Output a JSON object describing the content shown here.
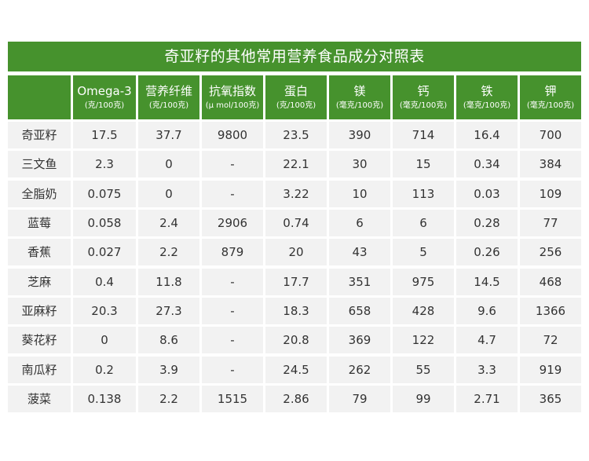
{
  "title": "奇亚籽的其他常用营养食品成分对照表",
  "header_color": "#46922d",
  "cell_color": "#f2f2f2",
  "columns": [
    {
      "name": "",
      "unit": ""
    },
    {
      "name": "Omega-3",
      "unit": "(克/100克)"
    },
    {
      "name": "营养纤维",
      "unit": "(克/100克)"
    },
    {
      "name": "抗氧指数",
      "unit": "(μ mol/100克)"
    },
    {
      "name": "蛋白",
      "unit": "(克/100克)"
    },
    {
      "name": "镁",
      "unit": "(毫克/100克)"
    },
    {
      "name": "钙",
      "unit": "(毫克/100克)"
    },
    {
      "name": "铁",
      "unit": "(毫克/100克)"
    },
    {
      "name": "钾",
      "unit": "(毫克/100克)"
    }
  ],
  "rows": [
    [
      "奇亚籽",
      "17.5",
      "37.7",
      "9800",
      "23.5",
      "390",
      "714",
      "16.4",
      "700"
    ],
    [
      "三文鱼",
      "2.3",
      "0",
      "-",
      "22.1",
      "30",
      "15",
      "0.34",
      "384"
    ],
    [
      "全脂奶",
      "0.075",
      "0",
      "-",
      "3.22",
      "10",
      "113",
      "0.03",
      "109"
    ],
    [
      "蓝莓",
      "0.058",
      "2.4",
      "2906",
      "0.74",
      "6",
      "6",
      "0.28",
      "77"
    ],
    [
      "香蕉",
      "0.027",
      "2.2",
      "879",
      "20",
      "43",
      "5",
      "0.26",
      "256"
    ],
    [
      "芝麻",
      "0.4",
      "11.8",
      "-",
      "17.7",
      "351",
      "975",
      "14.5",
      "468"
    ],
    [
      "亚麻籽",
      "20.3",
      "27.3",
      "-",
      "18.3",
      "658",
      "428",
      "9.6",
      "1366"
    ],
    [
      "葵花籽",
      "0",
      "8.6",
      "-",
      "20.8",
      "369",
      "122",
      "4.7",
      "72"
    ],
    [
      "南瓜籽",
      "0.2",
      "3.9",
      "-",
      "24.5",
      "262",
      "55",
      "3.3",
      "919"
    ],
    [
      "菠菜",
      "0.138",
      "2.2",
      "1515",
      "2.86",
      "79",
      "99",
      "2.71",
      "365"
    ]
  ]
}
